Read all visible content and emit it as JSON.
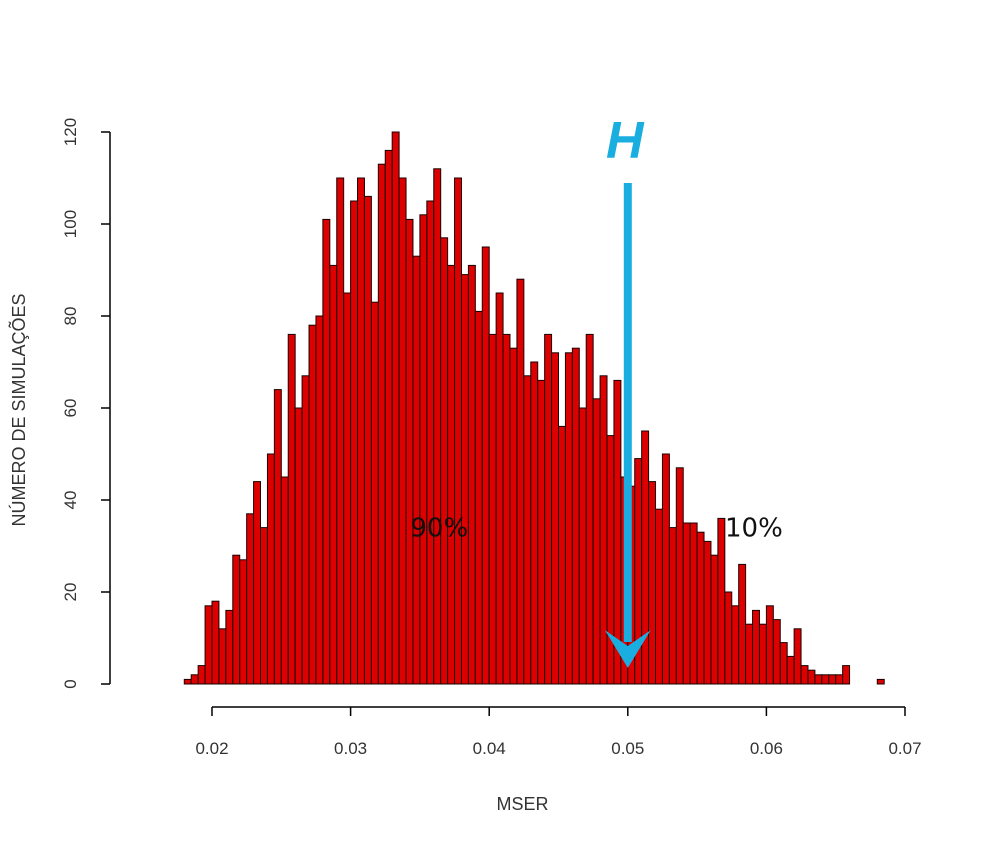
{
  "chart_data": {
    "type": "bar",
    "xlabel": "MSER",
    "ylabel": "NÚMERO DE SIMULAÇÕES",
    "xlim": [
      0.018,
      0.07
    ],
    "ylim": [
      0,
      120
    ],
    "xticks": [
      "0.02",
      "0.03",
      "0.04",
      "0.05",
      "0.06",
      "0.07"
    ],
    "xtick_values": [
      0.02,
      0.03,
      0.04,
      0.05,
      0.06,
      0.07
    ],
    "yticks": [
      "0",
      "20",
      "40",
      "60",
      "80",
      "100",
      "120"
    ],
    "ytick_values": [
      0,
      20,
      40,
      60,
      80,
      100,
      120
    ],
    "bin_start": 0.018,
    "bin_width": 0.0005,
    "values": [
      1,
      2,
      4,
      17,
      18,
      12,
      16,
      28,
      27,
      37,
      44,
      34,
      50,
      64,
      45,
      76,
      60,
      67,
      78,
      80,
      101,
      91,
      110,
      85,
      105,
      110,
      106,
      83,
      113,
      116,
      120,
      110,
      101,
      93,
      102,
      105,
      112,
      97,
      91,
      110,
      89,
      91,
      81,
      95,
      76,
      85,
      76,
      73,
      88,
      67,
      70,
      66,
      76,
      72,
      56,
      72,
      73,
      60,
      76,
      62,
      67,
      54,
      66,
      45,
      43,
      49,
      55,
      44,
      38,
      50,
      34,
      47,
      35,
      35,
      33,
      31,
      28,
      36,
      20,
      17,
      26,
      13,
      16,
      13,
      17,
      14,
      9,
      6,
      12,
      4,
      3,
      2,
      2,
      2,
      2,
      4,
      0,
      0,
      0,
      0,
      1
    ],
    "bar_color": "#dd0000",
    "bar_edge_color": "#1a0000",
    "grid": false,
    "annotations": [
      {
        "text": "90%",
        "x": 0.0364,
        "y": 34
      },
      {
        "text": "10%",
        "x": 0.0591,
        "y": 34
      }
    ],
    "marker": {
      "label": "H",
      "x": 0.05,
      "color": "#1aaee0"
    }
  }
}
